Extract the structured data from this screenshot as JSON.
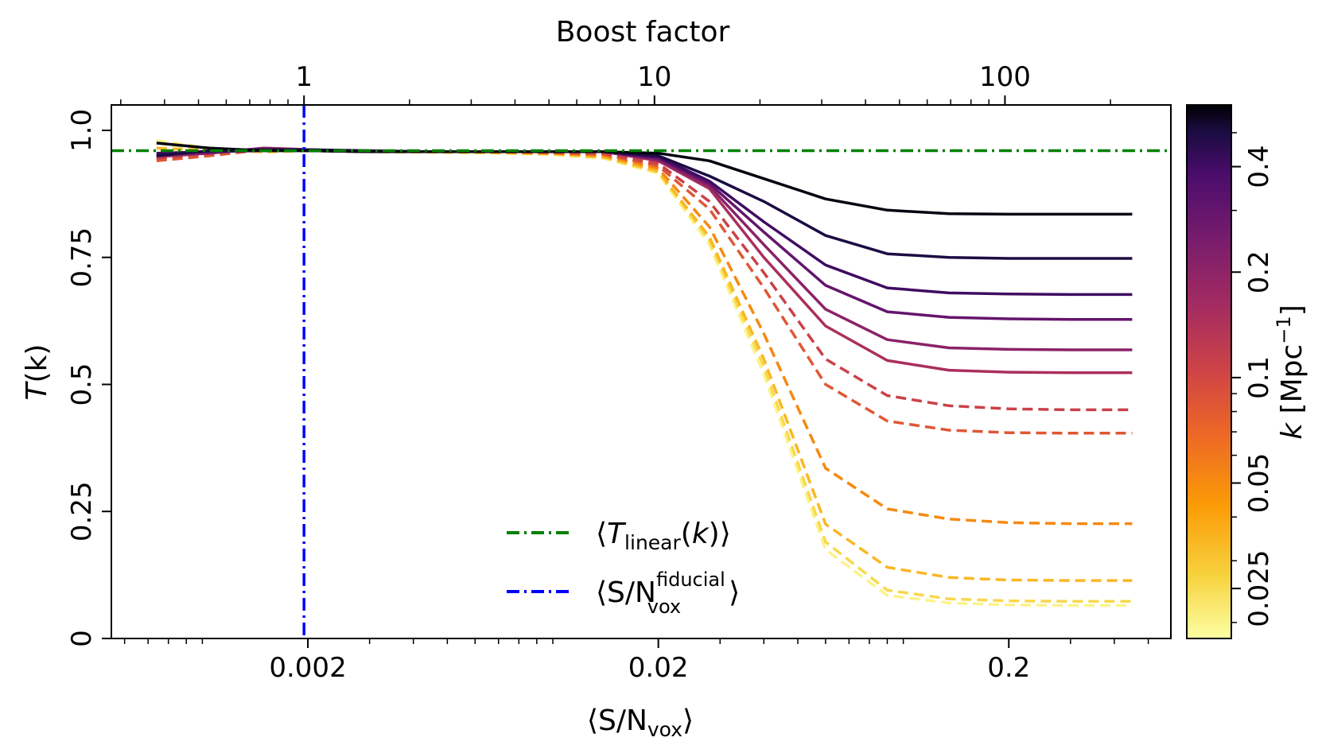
{
  "chart_data": {
    "type": "line",
    "top_axis": {
      "label": "Boost factor",
      "ticks": [
        {
          "value": 1,
          "label": "1"
        },
        {
          "value": 10,
          "label": "10"
        },
        {
          "value": 100,
          "label": "100"
        }
      ],
      "scale": "log"
    },
    "x_axis": {
      "label_main": "⟨S/N",
      "label_sub": "vox",
      "label_close": "⟩",
      "scale": "log",
      "range": [
        0.00055,
        0.58
      ],
      "ticks": [
        {
          "value": 0.002,
          "label": "0.002"
        },
        {
          "value": 0.02,
          "label": "0.02"
        },
        {
          "value": 0.2,
          "label": "0.2"
        }
      ]
    },
    "y_axis": {
      "label_italic": "T",
      "label_rest": "(k)",
      "range": [
        0,
        1.05
      ],
      "ticks": [
        {
          "value": 0,
          "label": "0"
        },
        {
          "value": 0.25,
          "label": "0.25"
        },
        {
          "value": 0.5,
          "label": "0.5"
        },
        {
          "value": 0.75,
          "label": "0.75"
        },
        {
          "value": 1.0,
          "label": "1.0"
        }
      ]
    },
    "x": [
      0.00074,
      0.00105,
      0.0015,
      0.002,
      0.003,
      0.0045,
      0.007,
      0.01,
      0.014,
      0.02,
      0.028,
      0.04,
      0.06,
      0.09,
      0.135,
      0.2,
      0.3,
      0.45
    ],
    "series": [
      {
        "k": 0.55,
        "style": "solid",
        "values": [
          0.975,
          0.965,
          0.96,
          0.96,
          0.958,
          0.958,
          0.958,
          0.958,
          0.958,
          0.955,
          0.94,
          0.905,
          0.865,
          0.843,
          0.836,
          0.835,
          0.835,
          0.835
        ]
      },
      {
        "k": 0.4,
        "style": "solid",
        "values": [
          0.95,
          0.96,
          0.962,
          0.962,
          0.96,
          0.958,
          0.958,
          0.958,
          0.958,
          0.95,
          0.91,
          0.86,
          0.793,
          0.757,
          0.75,
          0.748,
          0.748,
          0.748
        ]
      },
      {
        "k": 0.3,
        "style": "solid",
        "values": [
          0.955,
          0.958,
          0.96,
          0.96,
          0.958,
          0.958,
          0.958,
          0.958,
          0.958,
          0.948,
          0.9,
          0.82,
          0.735,
          0.69,
          0.68,
          0.678,
          0.677,
          0.677
        ]
      },
      {
        "k": 0.22,
        "style": "solid",
        "values": [
          0.952,
          0.958,
          0.962,
          0.96,
          0.958,
          0.958,
          0.958,
          0.958,
          0.958,
          0.945,
          0.895,
          0.8,
          0.695,
          0.643,
          0.632,
          0.629,
          0.628,
          0.628
        ]
      },
      {
        "k": 0.16,
        "style": "solid",
        "values": [
          0.95,
          0.955,
          0.965,
          0.962,
          0.958,
          0.958,
          0.958,
          0.958,
          0.958,
          0.942,
          0.89,
          0.775,
          0.648,
          0.588,
          0.572,
          0.569,
          0.568,
          0.568
        ]
      },
      {
        "k": 0.12,
        "style": "solid",
        "values": [
          0.948,
          0.955,
          0.965,
          0.962,
          0.958,
          0.958,
          0.958,
          0.958,
          0.958,
          0.94,
          0.885,
          0.75,
          0.615,
          0.547,
          0.528,
          0.524,
          0.523,
          0.523
        ]
      },
      {
        "k": 0.09,
        "style": "dashed",
        "values": [
          0.945,
          0.955,
          0.962,
          0.962,
          0.958,
          0.958,
          0.958,
          0.957,
          0.955,
          0.935,
          0.86,
          0.72,
          0.55,
          0.478,
          0.458,
          0.452,
          0.45,
          0.45
        ]
      },
      {
        "k": 0.07,
        "style": "dashed",
        "values": [
          0.94,
          0.95,
          0.962,
          0.962,
          0.958,
          0.958,
          0.958,
          0.956,
          0.953,
          0.93,
          0.845,
          0.69,
          0.5,
          0.428,
          0.41,
          0.405,
          0.404,
          0.404
        ]
      },
      {
        "k": 0.045,
        "style": "dashed",
        "values": [
          0.955,
          0.957,
          0.96,
          0.96,
          0.958,
          0.958,
          0.957,
          0.955,
          0.95,
          0.925,
          0.81,
          0.6,
          0.335,
          0.255,
          0.235,
          0.228,
          0.226,
          0.226
        ]
      },
      {
        "k": 0.032,
        "style": "dashed",
        "values": [
          0.965,
          0.96,
          0.958,
          0.96,
          0.958,
          0.957,
          0.956,
          0.954,
          0.948,
          0.92,
          0.79,
          0.55,
          0.225,
          0.14,
          0.12,
          0.115,
          0.114,
          0.114
        ]
      },
      {
        "k": 0.025,
        "style": "dashed",
        "values": [
          0.975,
          0.962,
          0.958,
          0.96,
          0.958,
          0.957,
          0.956,
          0.953,
          0.946,
          0.918,
          0.783,
          0.535,
          0.19,
          0.095,
          0.078,
          0.074,
          0.073,
          0.073
        ]
      },
      {
        "k": 0.02,
        "style": "dashed",
        "values": [
          0.98,
          0.965,
          0.957,
          0.96,
          0.958,
          0.957,
          0.955,
          0.952,
          0.945,
          0.915,
          0.775,
          0.52,
          0.175,
          0.085,
          0.07,
          0.066,
          0.065,
          0.065
        ]
      }
    ],
    "t_linear": 0.96,
    "sn_fiducial": 0.00195,
    "legend": {
      "position": "lower-center",
      "entries": [
        {
          "id": "t_linear",
          "color": "#008000",
          "parts": {
            "open": "⟨",
            "italic": "T",
            "sub": "linear",
            "rest": "(",
            "italic2": "k",
            "close": ")⟩"
          }
        },
        {
          "id": "sn_fid",
          "color": "#0000ff",
          "parts": {
            "open": "⟨S/N",
            "sup": "fiducial",
            "sub": "vox",
            "close": "⟩"
          }
        }
      ]
    },
    "colorbar": {
      "label_italic": "k",
      "label_rest": " [Mpc",
      "label_sup": "−1",
      "label_close": "]",
      "scale": "log",
      "range": [
        0.018,
        0.6
      ],
      "colormap": "inferno_r",
      "ticks": [
        {
          "value": 0.025,
          "label": "0.025"
        },
        {
          "value": 0.05,
          "label": "0.05"
        },
        {
          "value": 0.1,
          "label": "0.1"
        },
        {
          "value": 0.2,
          "label": "0.2"
        },
        {
          "value": 0.4,
          "label": "0.4"
        }
      ]
    },
    "grid": false
  }
}
